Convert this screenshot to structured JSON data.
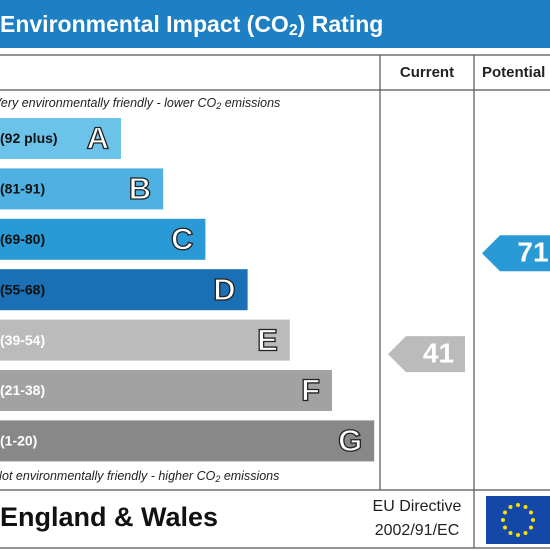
{
  "header": {
    "title": [
      "Environmental Impact (CO",
      "2",
      ") Rating"
    ]
  },
  "columns": [
    "Current",
    "Potential"
  ],
  "top_note": [
    "Very environmentally friendly - lower CO",
    "2",
    " emissions"
  ],
  "bottom_note": [
    "Not environmentally friendly - higher CO",
    "2",
    " emissions"
  ],
  "bands": [
    {
      "range": "(92 plus)",
      "letter": "A",
      "color": "#6cc3ea"
    },
    {
      "range": "(81-91)",
      "letter": "B",
      "color": "#4fb1e2"
    },
    {
      "range": "(69-80)",
      "letter": "C",
      "color": "#2a9ad6"
    },
    {
      "range": "(55-68)",
      "letter": "D",
      "color": "#1b6fb5"
    },
    {
      "range": "(39-54)",
      "letter": "E",
      "color": "#bbbbbb"
    },
    {
      "range": "(21-38)",
      "letter": "F",
      "color": "#a2a2a2"
    },
    {
      "range": "(1-20)",
      "letter": "G",
      "color": "#888888"
    }
  ],
  "current": 41,
  "potential": 71,
  "footer": {
    "region": "England & Wales",
    "directive": [
      "EU Directive",
      "2002/91/EC"
    ]
  }
}
